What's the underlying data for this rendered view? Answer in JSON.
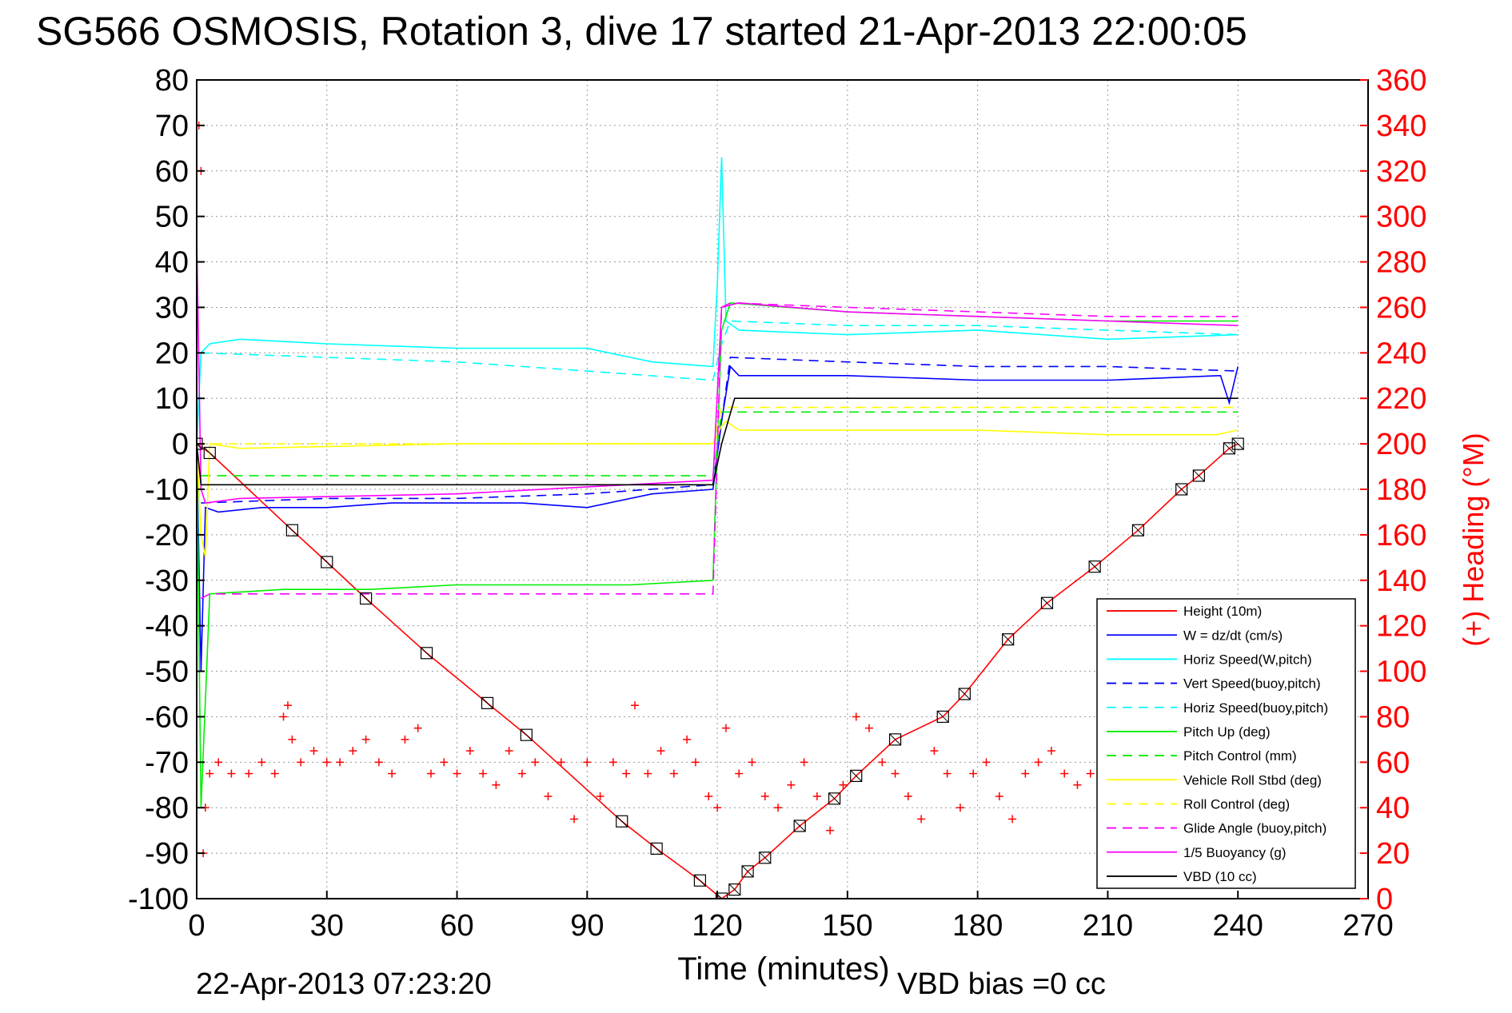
{
  "chart_data": {
    "type": "line",
    "title": "SG566 OSMOSIS, Rotation 3, dive 17 started 21-Apr-2013 22:00:05",
    "xlabel": "Time (minutes)",
    "ylabel": "",
    "y2label": "(+) Heading (°M)",
    "footer_left": "22-Apr-2013 07:23:20",
    "footer_right": "VBD bias =0 cc",
    "xlim": [
      0,
      270
    ],
    "ylim": [
      -100,
      80
    ],
    "y2lim": [
      0,
      360
    ],
    "xticks": [
      0,
      30,
      60,
      90,
      120,
      150,
      180,
      210,
      240,
      270
    ],
    "yticks": [
      -100,
      -90,
      -80,
      -70,
      -60,
      -50,
      -40,
      -30,
      -20,
      -10,
      0,
      10,
      20,
      30,
      40,
      50,
      60,
      70,
      80
    ],
    "y2ticks": [
      0,
      20,
      40,
      60,
      80,
      100,
      120,
      140,
      160,
      180,
      200,
      220,
      240,
      260,
      280,
      300,
      320,
      340,
      360
    ],
    "grid": true,
    "legend_position": "bottom-right",
    "legend": [
      {
        "label": "Height (10m)",
        "color": "#ff0000",
        "dash": "solid"
      },
      {
        "label": "W = dz/dt (cm/s)",
        "color": "#0000ff",
        "dash": "solid"
      },
      {
        "label": "Horiz Speed(W,pitch)",
        "color": "#00ffff",
        "dash": "solid"
      },
      {
        "label": "Vert Speed(buoy,pitch)",
        "color": "#0000ff",
        "dash": "dashed"
      },
      {
        "label": "Horiz Speed(buoy,pitch)",
        "color": "#00ffff",
        "dash": "dashed"
      },
      {
        "label": "Pitch Up (deg)",
        "color": "#00ee00",
        "dash": "solid"
      },
      {
        "label": "Pitch Control (mm)",
        "color": "#00ee00",
        "dash": "dashed"
      },
      {
        "label": "Vehicle Roll Stbd (deg)",
        "color": "#ffff00",
        "dash": "solid"
      },
      {
        "label": "Roll Control (deg)",
        "color": "#ffff00",
        "dash": "dashed"
      },
      {
        "label": "Glide Angle (buoy,pitch)",
        "color": "#ff00ff",
        "dash": "dashed"
      },
      {
        "label": "1/5 Buoyancy (g)",
        "color": "#ff00ff",
        "dash": "solid"
      },
      {
        "label": "VBD (10 cc)",
        "color": "#000000",
        "dash": "solid"
      }
    ],
    "series": [
      {
        "name": "Height (10m)",
        "color": "#ff0000",
        "dash": "solid",
        "x": [
          0,
          3,
          22,
          30,
          39,
          53,
          67,
          76,
          98,
          106,
          116,
          121,
          124,
          127,
          131,
          139,
          147,
          152,
          161,
          172,
          177,
          187,
          196,
          207,
          217,
          227,
          231,
          238,
          240
        ],
        "y": [
          0,
          -2,
          -19,
          -26,
          -34,
          -46,
          -57,
          -64,
          -83,
          -89,
          -96,
          -100,
          -98,
          -94,
          -91,
          -84,
          -78,
          -73,
          -65,
          -60,
          -55,
          -43,
          -35,
          -27,
          -19,
          -10,
          -7,
          -1,
          0
        ]
      },
      {
        "name": "W = dz/dt (cm/s)",
        "color": "#0000ff",
        "dash": "solid",
        "x": [
          0,
          1,
          2,
          5,
          15,
          30,
          45,
          60,
          75,
          90,
          105,
          119,
          121,
          123,
          125,
          130,
          150,
          180,
          210,
          236,
          238,
          240
        ],
        "y": [
          0,
          -50,
          -14,
          -15,
          -14,
          -14,
          -13,
          -13,
          -13,
          -14,
          -11,
          -10,
          5,
          17,
          15,
          15,
          15,
          14,
          14,
          15,
          9,
          17
        ]
      },
      {
        "name": "Horiz Speed(W,pitch)",
        "color": "#00ffff",
        "dash": "solid",
        "x": [
          0,
          1,
          3,
          10,
          30,
          60,
          90,
          105,
          119,
          120,
          121,
          122,
          125,
          150,
          180,
          210,
          240
        ],
        "y": [
          0,
          20,
          22,
          23,
          22,
          21,
          21,
          18,
          17,
          35,
          63,
          27,
          25,
          24,
          25,
          23,
          24
        ]
      },
      {
        "name": "Vert Speed(buoy,pitch)",
        "color": "#0000ff",
        "dash": "dashed",
        "x": [
          1,
          30,
          60,
          90,
          119,
          121,
          123,
          150,
          180,
          210,
          240
        ],
        "y": [
          -13,
          -12,
          -12,
          -11,
          -9,
          5,
          19,
          18,
          17,
          17,
          16
        ]
      },
      {
        "name": "Horiz Speed(buoy,pitch)",
        "color": "#00ffff",
        "dash": "dashed",
        "x": [
          1,
          30,
          60,
          90,
          119,
          121,
          123,
          150,
          180,
          210,
          240
        ],
        "y": [
          20,
          19,
          18,
          16,
          14,
          22,
          27,
          26,
          26,
          25,
          24
        ]
      },
      {
        "name": "Pitch Up (deg)",
        "color": "#00ee00",
        "dash": "solid",
        "x": [
          0,
          1,
          3,
          20,
          40,
          60,
          80,
          100,
          119,
          120,
          121,
          123,
          150,
          180,
          210,
          240
        ],
        "y": [
          0,
          -80,
          -33,
          -32,
          -32,
          -31,
          -31,
          -31,
          -30,
          0,
          25,
          31,
          29,
          28,
          27,
          27
        ]
      },
      {
        "name": "Pitch Control (mm)",
        "color": "#00ee00",
        "dash": "dashed",
        "x": [
          1,
          119,
          121,
          240
        ],
        "y": [
          -7,
          -7,
          7,
          7
        ]
      },
      {
        "name": "Vehicle Roll Stbd (deg)",
        "color": "#ffff00",
        "dash": "solid",
        "x": [
          0,
          1,
          2,
          3,
          10,
          60,
          119,
          121,
          122,
          125,
          150,
          180,
          210,
          235,
          240
        ],
        "y": [
          0,
          -20,
          -25,
          0,
          -1,
          0,
          0,
          4,
          5,
          3,
          3,
          3,
          2,
          2,
          3
        ]
      },
      {
        "name": "Roll Control (deg)",
        "color": "#ffff00",
        "dash": "dashed",
        "x": [
          0,
          119,
          121,
          240
        ],
        "y": [
          0,
          0,
          8,
          8
        ]
      },
      {
        "name": "Glide Angle (buoy,pitch)",
        "color": "#ff00ff",
        "dash": "dashed",
        "x": [
          1,
          3,
          30,
          60,
          90,
          119,
          121,
          123,
          150,
          180,
          210,
          240
        ],
        "y": [
          -34,
          -33,
          -33,
          -33,
          -33,
          -33,
          30,
          31,
          30,
          29,
          28,
          28
        ]
      },
      {
        "name": "1/5 Buoyancy (g)",
        "color": "#ff00ff",
        "dash": "solid",
        "x": [
          0,
          1,
          2,
          10,
          60,
          119,
          121,
          125,
          150,
          180,
          210,
          240
        ],
        "y": [
          45,
          -10,
          -13,
          -12,
          -11,
          -8,
          30,
          31,
          29,
          28,
          27,
          26
        ]
      },
      {
        "name": "VBD (10 cc)",
        "color": "#000000",
        "dash": "solid",
        "x": [
          0,
          1,
          3,
          119,
          121,
          124,
          240
        ],
        "y": [
          0,
          -9,
          -9,
          -9,
          0,
          10,
          10
        ]
      }
    ],
    "heading_series": {
      "name": "(+) Heading",
      "color": "#ff0000",
      "marker": "+",
      "x": [
        0.5,
        1,
        1.5,
        2,
        3,
        5,
        8,
        12,
        15,
        18,
        20,
        21,
        22,
        24,
        27,
        30,
        33,
        36,
        39,
        42,
        45,
        48,
        51,
        54,
        57,
        60,
        63,
        66,
        69,
        72,
        75,
        78,
        81,
        84,
        87,
        90,
        93,
        96,
        99,
        101,
        104,
        107,
        110,
        113,
        115,
        118,
        120,
        122,
        125,
        128,
        131,
        134,
        137,
        140,
        143,
        146,
        149,
        152,
        155,
        158,
        161,
        164,
        167,
        170,
        173,
        176,
        179,
        182,
        185,
        188,
        191,
        194,
        197,
        200,
        203,
        206,
        209
      ],
      "y": [
        340,
        320,
        20,
        40,
        55,
        60,
        55,
        55,
        60,
        55,
        80,
        85,
        70,
        60,
        65,
        60,
        60,
        65,
        70,
        60,
        55,
        70,
        75,
        55,
        60,
        55,
        65,
        55,
        50,
        65,
        55,
        60,
        45,
        60,
        35,
        60,
        45,
        60,
        55,
        85,
        55,
        65,
        55,
        70,
        60,
        45,
        40,
        75,
        55,
        60,
        45,
        40,
        50,
        60,
        45,
        30,
        50,
        80,
        75,
        60,
        55,
        45,
        35,
        65,
        55,
        40,
        55,
        60,
        45,
        35,
        55,
        60,
        65,
        55,
        50,
        55,
        45
      ]
    }
  }
}
